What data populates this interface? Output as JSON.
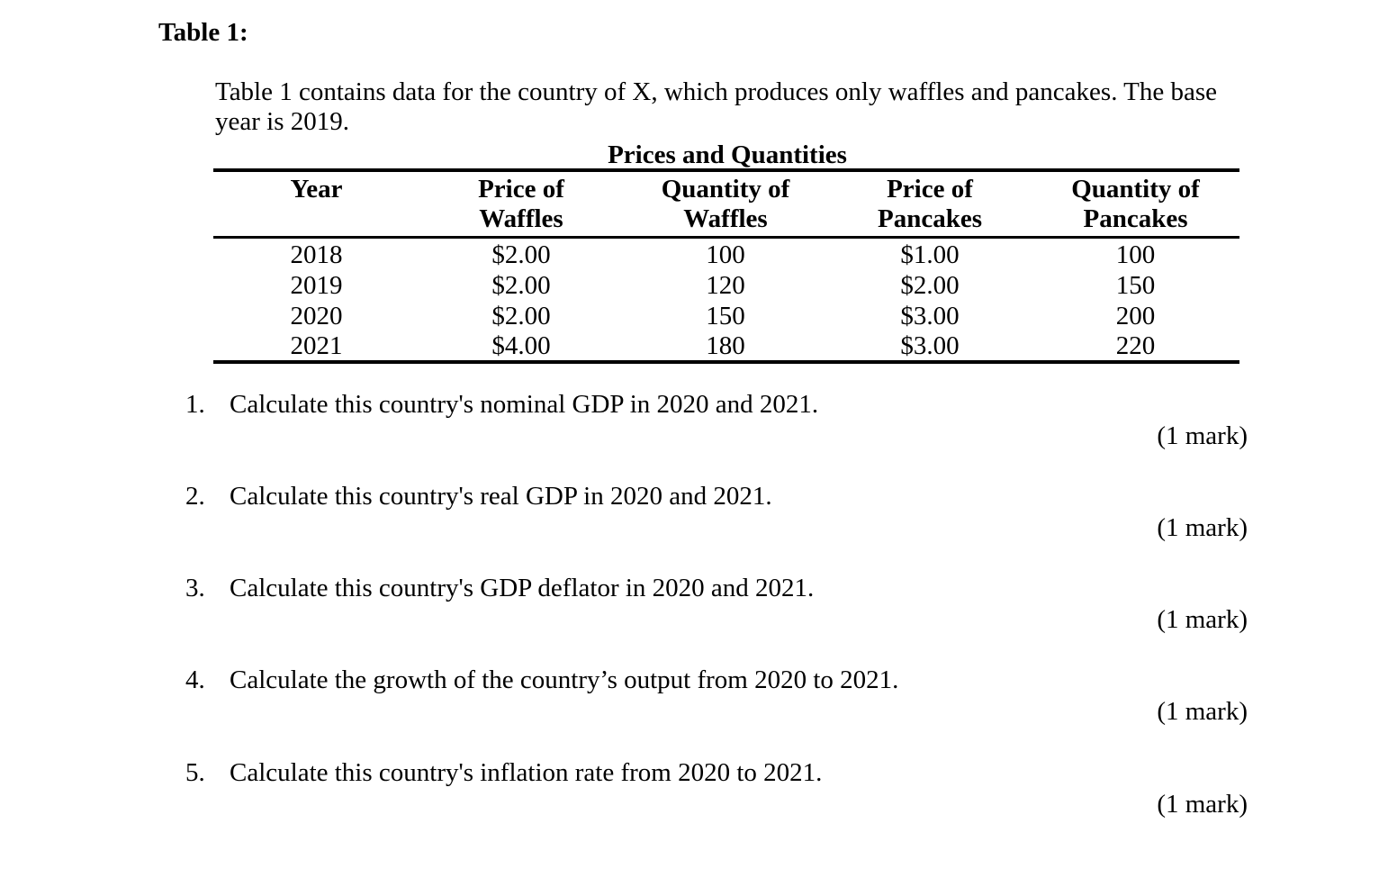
{
  "heading": "Table 1:",
  "intro": "Table 1 contains data for the country of X, which produces only waffles and pancakes.  The base year is 2019.",
  "table": {
    "caption": "Prices and Quantities",
    "headers": [
      [
        "Year",
        ""
      ],
      [
        "Price of",
        "Waffles"
      ],
      [
        "Quantity of",
        "Waffles"
      ],
      [
        "Price of",
        "Pancakes"
      ],
      [
        "Quantity of",
        "Pancakes"
      ]
    ],
    "rows": [
      [
        "2018",
        "$2.00",
        "100",
        "$1.00",
        "100"
      ],
      [
        "2019",
        "$2.00",
        "120",
        "$2.00",
        "150"
      ],
      [
        "2020",
        "$2.00",
        "150",
        "$3.00",
        "200"
      ],
      [
        "2021",
        "$4.00",
        "180",
        "$3.00",
        "220"
      ]
    ]
  },
  "questions": [
    {
      "number": "1.",
      "text": "Calculate this country's nominal GDP in 2020 and 2021.",
      "mark": "(1 mark)"
    },
    {
      "number": "2.",
      "text": "Calculate this country's real GDP in 2020 and 2021.",
      "mark": "(1 mark)"
    },
    {
      "number": "3.",
      "text": "Calculate this country's GDP deflator in 2020 and 2021.",
      "mark": "(1 mark)"
    },
    {
      "number": "4.",
      "text": "Calculate the growth of the country’s output from 2020 to 2021.",
      "mark": "(1 mark)"
    },
    {
      "number": "5.",
      "text": "Calculate this country's inflation rate from 2020 to 2021.",
      "mark": "(1 mark)"
    }
  ]
}
